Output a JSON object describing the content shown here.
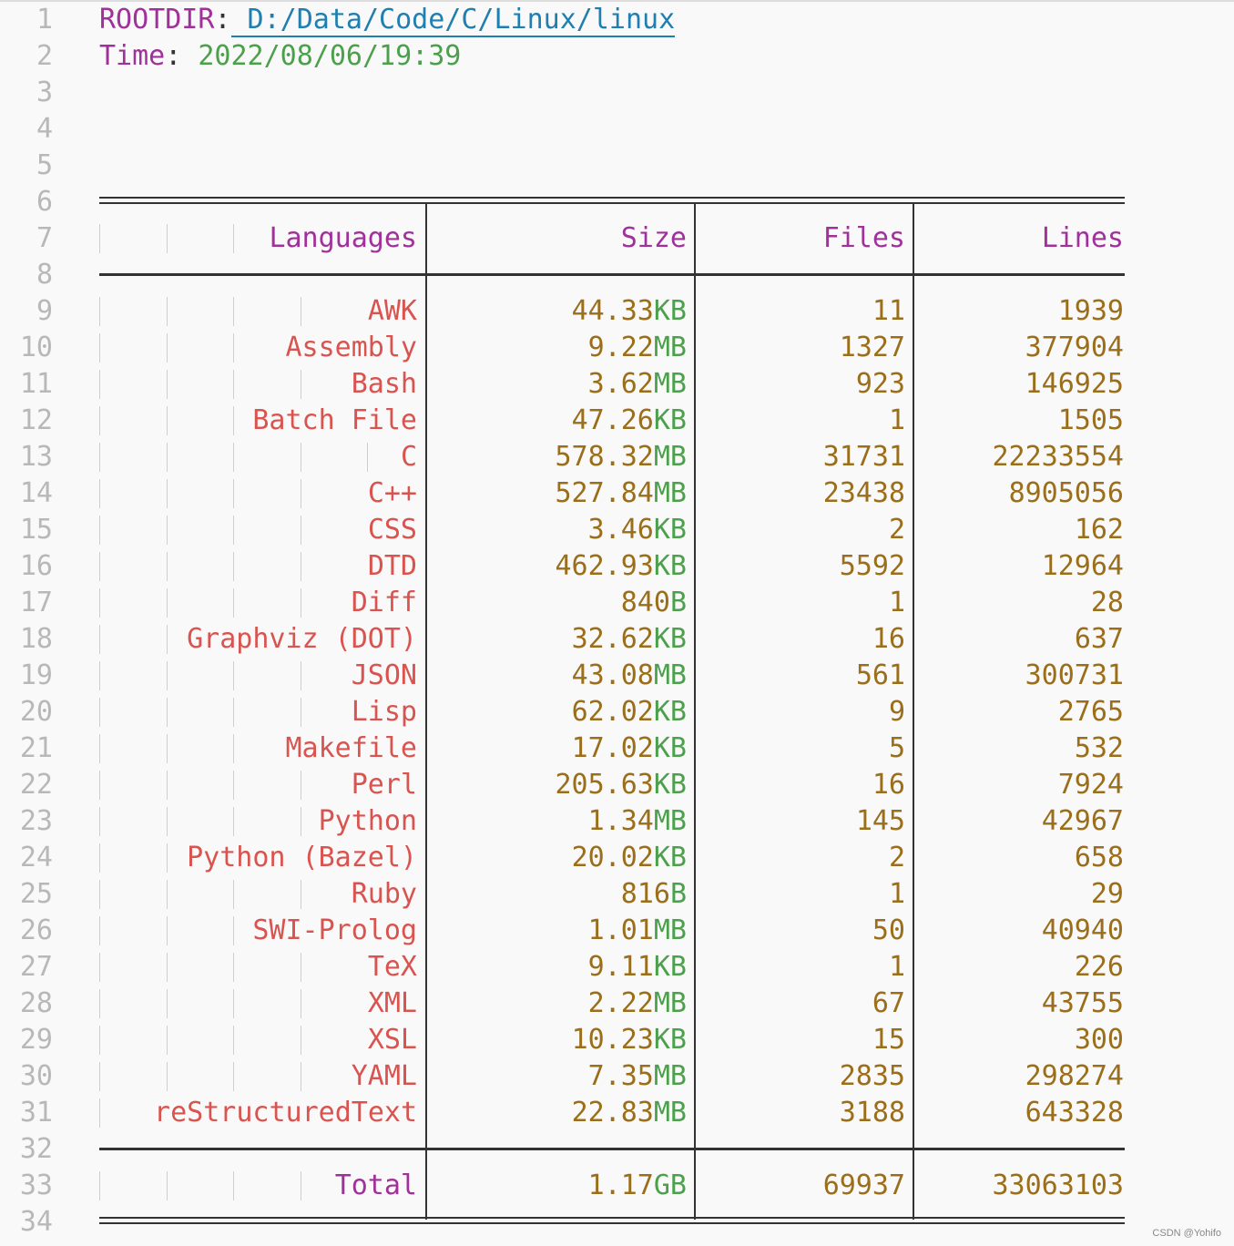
{
  "line_numbers": [
    1,
    2,
    3,
    4,
    5,
    6,
    7,
    8,
    9,
    10,
    11,
    12,
    13,
    14,
    15,
    16,
    17,
    18,
    19,
    20,
    21,
    22,
    23,
    24,
    25,
    26,
    27,
    28,
    29,
    30,
    31,
    32,
    33,
    34
  ],
  "header": {
    "rootdir_key": "ROOTDIR",
    "rootdir_value": " D:/Data/Code/C/Linux/linux",
    "time_key": "Time",
    "time_value": "2022/08/06/19:39"
  },
  "table": {
    "columns": [
      "Languages",
      "Size",
      "Files",
      "Lines"
    ],
    "rows": [
      {
        "lang": "AWK",
        "size": "44.33",
        "unit": "KB",
        "files": "11",
        "lines": "1939"
      },
      {
        "lang": "Assembly",
        "size": "9.22",
        "unit": "MB",
        "files": "1327",
        "lines": "377904"
      },
      {
        "lang": "Bash",
        "size": "3.62",
        "unit": "MB",
        "files": "923",
        "lines": "146925"
      },
      {
        "lang": "Batch File",
        "size": "47.26",
        "unit": "KB",
        "files": "1",
        "lines": "1505"
      },
      {
        "lang": "C",
        "size": "578.32",
        "unit": "MB",
        "files": "31731",
        "lines": "22233554"
      },
      {
        "lang": "C++",
        "size": "527.84",
        "unit": "MB",
        "files": "23438",
        "lines": "8905056"
      },
      {
        "lang": "CSS",
        "size": "3.46",
        "unit": "KB",
        "files": "2",
        "lines": "162"
      },
      {
        "lang": "DTD",
        "size": "462.93",
        "unit": "KB",
        "files": "5592",
        "lines": "12964"
      },
      {
        "lang": "Diff",
        "size": "840",
        "unit": "B",
        "files": "1",
        "lines": "28"
      },
      {
        "lang": "Graphviz (DOT)",
        "size": "32.62",
        "unit": "KB",
        "files": "16",
        "lines": "637"
      },
      {
        "lang": "JSON",
        "size": "43.08",
        "unit": "MB",
        "files": "561",
        "lines": "300731"
      },
      {
        "lang": "Lisp",
        "size": "62.02",
        "unit": "KB",
        "files": "9",
        "lines": "2765"
      },
      {
        "lang": "Makefile",
        "size": "17.02",
        "unit": "KB",
        "files": "5",
        "lines": "532"
      },
      {
        "lang": "Perl",
        "size": "205.63",
        "unit": "KB",
        "files": "16",
        "lines": "7924"
      },
      {
        "lang": "Python",
        "size": "1.34",
        "unit": "MB",
        "files": "145",
        "lines": "42967"
      },
      {
        "lang": "Python (Bazel)",
        "size": "20.02",
        "unit": "KB",
        "files": "2",
        "lines": "658"
      },
      {
        "lang": "Ruby",
        "size": "816",
        "unit": "B",
        "files": "1",
        "lines": "29"
      },
      {
        "lang": "SWI-Prolog",
        "size": "1.01",
        "unit": "MB",
        "files": "50",
        "lines": "40940"
      },
      {
        "lang": "TeX",
        "size": "9.11",
        "unit": "KB",
        "files": "1",
        "lines": "226"
      },
      {
        "lang": "XML",
        "size": "2.22",
        "unit": "MB",
        "files": "67",
        "lines": "43755"
      },
      {
        "lang": "XSL",
        "size": "10.23",
        "unit": "KB",
        "files": "15",
        "lines": "300"
      },
      {
        "lang": "YAML",
        "size": "7.35",
        "unit": "MB",
        "files": "2835",
        "lines": "298274"
      },
      {
        "lang": "reStructuredText",
        "size": "22.83",
        "unit": "MB",
        "files": "3188",
        "lines": "643328"
      }
    ],
    "total": {
      "lang": "Total",
      "size": "1.17",
      "unit": "GB",
      "files": "69937",
      "lines": "33063103"
    }
  },
  "watermark": "CSDN @Yohifo",
  "colors": {
    "key": "#a0309a",
    "link": "#1f7fb0",
    "time": "#4ca04c",
    "lang": "#d9534f",
    "num": "#9a6e1a",
    "unit": "#4ca04c"
  }
}
